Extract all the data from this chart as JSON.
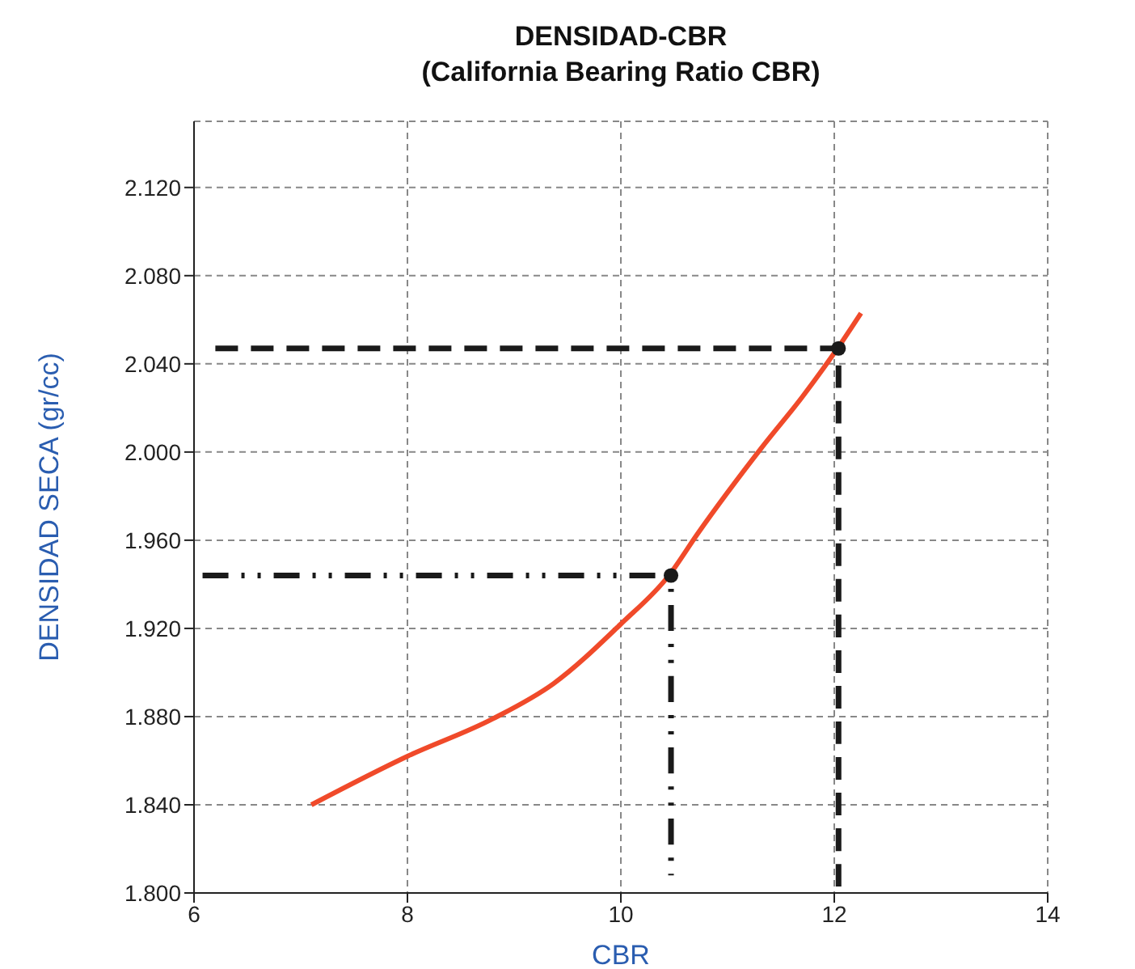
{
  "chart_data": {
    "type": "line",
    "title": "DENSIDAD-CBR",
    "subtitle": "(California Bearing Ratio CBR)",
    "xlabel": "CBR",
    "ylabel": "DENSIDAD SECA (gr/cc)",
    "xlim": [
      6,
      14
    ],
    "xticks": [
      6,
      8,
      10,
      12,
      14
    ],
    "ylim": [
      1.8,
      2.15
    ],
    "yticks": [
      {
        "value": 1.8,
        "label": "1.800"
      },
      {
        "value": 1.84,
        "label": "1.840"
      },
      {
        "value": 1.88,
        "label": "1.880"
      },
      {
        "value": 1.92,
        "label": "1.920"
      },
      {
        "value": 1.96,
        "label": "1.960"
      },
      {
        "value": 2.0,
        "label": "2.000"
      },
      {
        "value": 2.04,
        "label": "2.040"
      },
      {
        "value": 2.08,
        "label": "2.080"
      },
      {
        "value": 2.12,
        "label": "2.120"
      }
    ],
    "grid": true,
    "legend": false,
    "marker": "none",
    "series": [
      {
        "color": "#f04a2a",
        "line_style": "solid",
        "x": [
          7.1,
          8.0,
          8.8,
          9.37,
          10.0,
          10.45,
          10.72,
          11.32,
          11.7,
          12.03,
          12.25
        ],
        "values": [
          1.84,
          1.862,
          1.879,
          1.895,
          1.922,
          1.944,
          1.963,
          2.002,
          2.025,
          2.047,
          2.063
        ]
      },
      {
        "color": "#1a1a1a",
        "line_style": "dashed",
        "x": [
          6.2,
          12.04,
          12.04
        ],
        "values": [
          2.047,
          2.047,
          1.8
        ]
      },
      {
        "color": "#1a1a1a",
        "line_style": "dashdot",
        "x": [
          6.08,
          10.47,
          10.47
        ],
        "values": [
          1.944,
          1.944,
          1.808
        ]
      },
      {
        "type": "scatter",
        "color": "#1a1a1a",
        "marker": "circle",
        "x": [
          10.47,
          12.04
        ],
        "values": [
          1.944,
          2.047
        ]
      }
    ]
  }
}
